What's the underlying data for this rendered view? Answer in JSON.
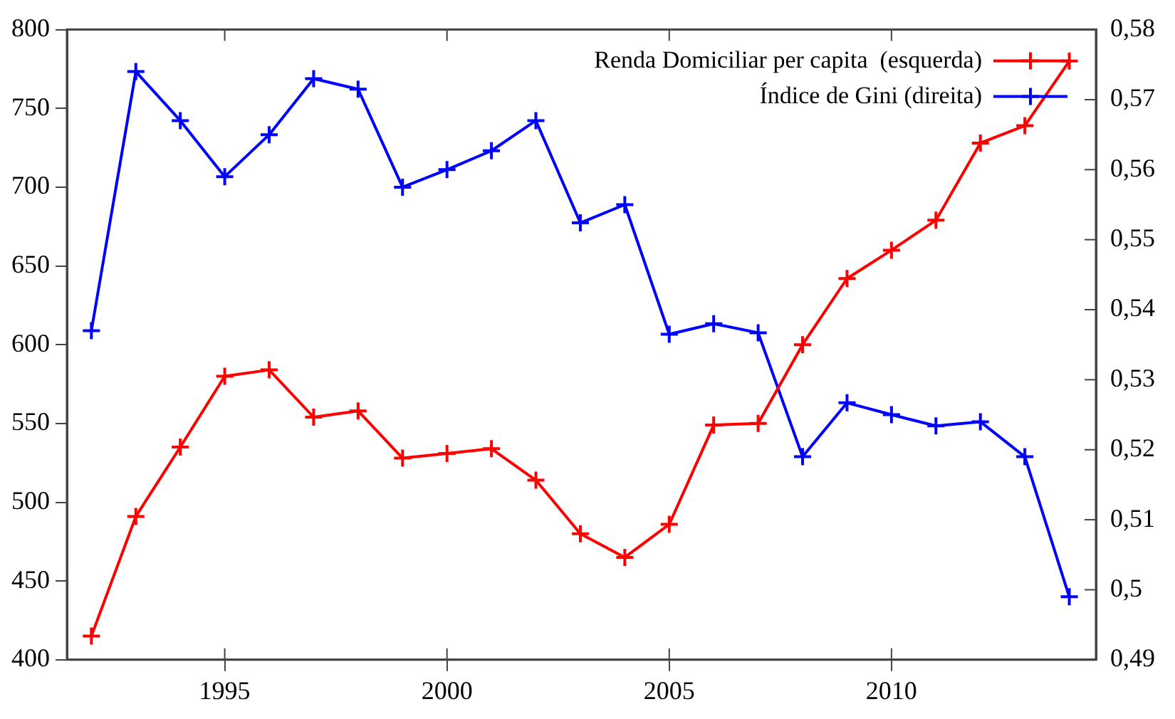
{
  "chart_data": {
    "type": "line",
    "x": [
      1992,
      1993,
      1994,
      1995,
      1996,
      1997,
      1998,
      1999,
      2000,
      2001,
      2002,
      2003,
      2004,
      2005,
      2006,
      2007,
      2008,
      2009,
      2010,
      2011,
      2012,
      2013,
      2014
    ],
    "series": [
      {
        "name": "Renda Domiciliar per capita  (esquerda)",
        "color": "#ff0000",
        "marker": "cross",
        "values": [
          415,
          491,
          535,
          580,
          584,
          554,
          558,
          528,
          531,
          534,
          514,
          480,
          465,
          486,
          549,
          550,
          600,
          642,
          660,
          679,
          728,
          739,
          780
        ]
      },
      {
        "name": "Índice de Gini (direita)",
        "color": "#0000ff",
        "marker": "cross",
        "axis": "y2",
        "values": [
          0.537,
          0.574,
          0.567,
          0.559,
          0.565,
          0.573,
          0.5715,
          0.5575,
          0.56,
          0.5627,
          0.567,
          0.5524,
          0.555,
          0.5365,
          0.538,
          0.5367,
          0.519,
          0.5267,
          0.525,
          0.5234,
          0.524,
          0.519,
          0.499
        ]
      }
    ],
    "xlim": [
      1991.45,
      2014.6
    ],
    "xticks": [
      1995,
      2000,
      2005,
      2010
    ],
    "ylim": [
      400,
      800
    ],
    "yticks": [
      400,
      450,
      500,
      550,
      600,
      650,
      700,
      750,
      800
    ],
    "y2lim": [
      0.49,
      0.58
    ],
    "y2ticks": [
      {
        "value": 0.49,
        "label": "0,49"
      },
      {
        "value": 0.5,
        "label": "0,5"
      },
      {
        "value": 0.51,
        "label": "0,51"
      },
      {
        "value": 0.52,
        "label": "0,52"
      },
      {
        "value": 0.53,
        "label": "0,53"
      },
      {
        "value": 0.54,
        "label": "0,54"
      },
      {
        "value": 0.55,
        "label": "0,55"
      },
      {
        "value": 0.56,
        "label": "0,56"
      },
      {
        "value": 0.57,
        "label": "0,57"
      },
      {
        "value": 0.58,
        "label": "0,58"
      }
    ],
    "grid": false,
    "legend": "top right",
    "line_style": "solid"
  }
}
